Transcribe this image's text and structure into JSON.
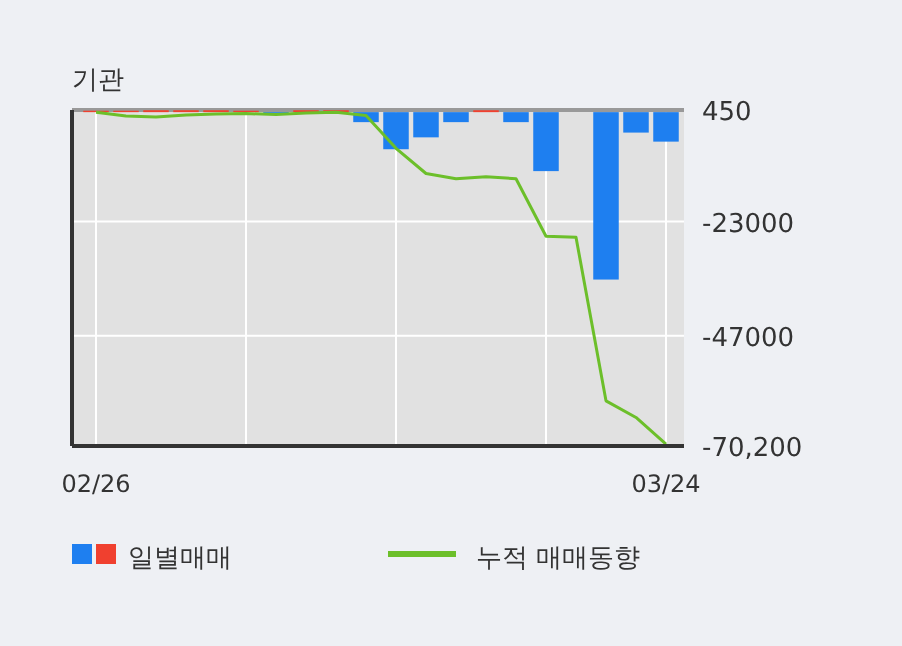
{
  "chart_data": {
    "type": "bar",
    "title": "기관",
    "categories": [
      "02/26",
      null,
      null,
      null,
      null,
      null,
      null,
      null,
      null,
      null,
      null,
      null,
      null,
      null,
      null,
      null,
      null,
      null,
      null,
      "03/24"
    ],
    "series": [
      {
        "name": "일별매매",
        "colors": [
          "#f0402f",
          "#f0402f",
          "#f0402f",
          "#f0402f",
          "#f0402f",
          "#f0402f",
          "#1e7ff0",
          "#f0402f",
          "#f0402f",
          "#1e7ff0",
          "#1e7ff0",
          "#1e7ff0",
          "#1e7ff0",
          "#f0402f",
          "#1e7ff0",
          "#1e7ff0",
          "#1e7ff0",
          "#1e7ff0",
          "#1e7ff0",
          "#1e7ff0"
        ],
        "values": [
          300,
          300,
          400,
          400,
          400,
          300,
          -300,
          400,
          400,
          -2100,
          -7800,
          -5300,
          -2100,
          400,
          -2100,
          -12400,
          0,
          -35200,
          -4300,
          -6200
        ]
      },
      {
        "name": "누적 매매동향",
        "type": "line",
        "color": "#6cbf2a",
        "values": [
          0,
          -800,
          -1000,
          -600,
          -400,
          -300,
          -500,
          -200,
          0,
          -700,
          -7600,
          -12900,
          -14000,
          -13600,
          -14000,
          -26100,
          -26300,
          -60700,
          -64200,
          -69800
        ]
      }
    ],
    "ylim": [
      -70200,
      450
    ],
    "yticks": [
      450,
      -23000,
      -47000,
      {
        "value": -70200,
        "label": "-70,200"
      }
    ],
    "grid": true,
    "legend": "bottom"
  }
}
